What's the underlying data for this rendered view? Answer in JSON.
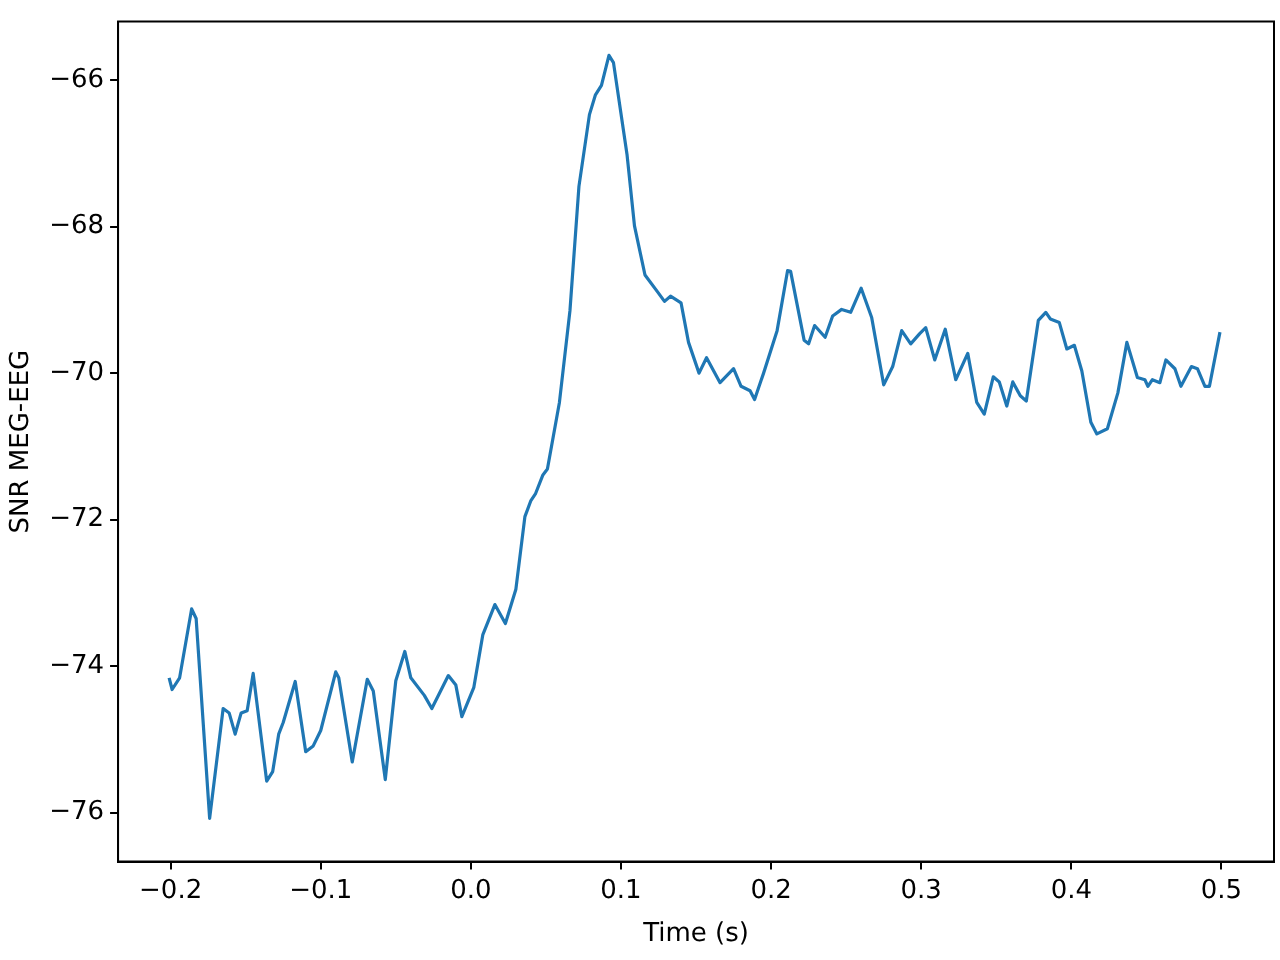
{
  "chart_data": {
    "type": "line",
    "xlabel": "Time (s)",
    "ylabel": "SNR MEG-EEG",
    "grid": false,
    "legend": false,
    "marker": "none",
    "line_style": "solid",
    "xlim": [
      -0.235,
      0.535
    ],
    "ylim": [
      -76.67,
      -65.2
    ],
    "xticks": [
      {
        "value": -0.2,
        "label": "−0.2"
      },
      {
        "value": -0.1,
        "label": "−0.1"
      },
      {
        "value": 0,
        "label": "0.0"
      },
      {
        "value": 0.1,
        "label": "0.1"
      },
      {
        "value": 0.2,
        "label": "0.2"
      },
      {
        "value": 0.3,
        "label": "0.3"
      },
      {
        "value": 0.4,
        "label": "0.4"
      },
      {
        "value": 0.5,
        "label": "0.5"
      }
    ],
    "yticks": [
      {
        "value": -76,
        "label": "−76"
      },
      {
        "value": -74,
        "label": "−74"
      },
      {
        "value": -72,
        "label": "−72"
      },
      {
        "value": -70,
        "label": "−70"
      },
      {
        "value": -68,
        "label": "−68"
      },
      {
        "value": -66,
        "label": "−66"
      }
    ],
    "x": [
      -0.201,
      -0.199,
      -0.194,
      -0.186,
      -0.183,
      -0.174,
      -0.165,
      -0.161,
      -0.157,
      -0.153,
      -0.149,
      -0.145,
      -0.136,
      -0.132,
      -0.128,
      -0.125,
      -0.117,
      -0.11,
      -0.105,
      -0.1,
      -0.09,
      -0.088,
      -0.079,
      -0.069,
      -0.065,
      -0.057,
      -0.05,
      -0.044,
      -0.04,
      -0.031,
      -0.026,
      -0.015,
      -0.01,
      -0.006,
      0.002,
      0.008,
      0.016,
      0.023,
      0.03,
      0.036,
      0.04,
      0.043,
      0.048,
      0.051,
      0.059,
      0.066,
      0.072,
      0.079,
      0.083,
      0.087,
      0.092,
      0.095,
      0.104,
      0.109,
      0.116,
      0.124,
      0.129,
      0.133,
      0.14,
      0.145,
      0.152,
      0.157,
      0.166,
      0.175,
      0.18,
      0.186,
      0.189,
      0.195,
      0.204,
      0.211,
      0.213,
      0.222,
      0.225,
      0.229,
      0.236,
      0.241,
      0.247,
      0.253,
      0.26,
      0.267,
      0.275,
      0.281,
      0.287,
      0.293,
      0.299,
      0.303,
      0.309,
      0.316,
      0.323,
      0.331,
      0.337,
      0.342,
      0.348,
      0.352,
      0.357,
      0.361,
      0.366,
      0.37,
      0.378,
      0.383,
      0.386,
      0.392,
      0.397,
      0.402,
      0.407,
      0.413,
      0.417,
      0.424,
      0.431,
      0.437,
      0.444,
      0.449,
      0.451,
      0.454,
      0.459,
      0.463,
      0.469,
      0.473,
      0.48,
      0.484,
      0.489,
      0.492,
      0.499
    ],
    "series": [
      {
        "color": "#1f77b4",
        "values": [
          -74.16,
          -74.32,
          -74.16,
          -73.22,
          -73.35,
          -76.08,
          -74.58,
          -74.64,
          -74.93,
          -74.64,
          -74.61,
          -74.1,
          -75.57,
          -75.44,
          -74.93,
          -74.77,
          -74.21,
          -75.17,
          -75.09,
          -74.88,
          -74.08,
          -74.16,
          -75.31,
          -74.18,
          -74.34,
          -75.55,
          -74.2,
          -73.8,
          -74.16,
          -74.4,
          -74.58,
          -74.13,
          -74.26,
          -74.69,
          -74.29,
          -73.57,
          -73.16,
          -73.42,
          -72.95,
          -71.96,
          -71.74,
          -71.65,
          -71.39,
          -71.31,
          -70.4,
          -69.15,
          -67.45,
          -66.47,
          -66.2,
          -66.07,
          -65.66,
          -65.76,
          -67.01,
          -67.99,
          -68.66,
          -68.88,
          -69.02,
          -68.95,
          -69.04,
          -69.58,
          -70.0,
          -69.79,
          -70.13,
          -69.94,
          -70.18,
          -70.24,
          -70.36,
          -70.0,
          -69.42,
          -68.6,
          -68.61,
          -69.55,
          -69.6,
          -69.35,
          -69.51,
          -69.22,
          -69.13,
          -69.17,
          -68.84,
          -69.24,
          -70.16,
          -69.91,
          -69.42,
          -69.6,
          -69.46,
          -69.38,
          -69.82,
          -69.4,
          -70.09,
          -69.73,
          -70.4,
          -70.56,
          -70.05,
          -70.12,
          -70.45,
          -70.12,
          -70.31,
          -70.38,
          -69.28,
          -69.17,
          -69.26,
          -69.31,
          -69.67,
          -69.62,
          -69.97,
          -70.67,
          -70.83,
          -70.76,
          -70.27,
          -69.58,
          -70.06,
          -70.09,
          -70.18,
          -70.09,
          -70.13,
          -69.82,
          -69.94,
          -70.18,
          -69.91,
          -69.94,
          -70.18,
          -70.18,
          -69.44
        ]
      }
    ]
  }
}
